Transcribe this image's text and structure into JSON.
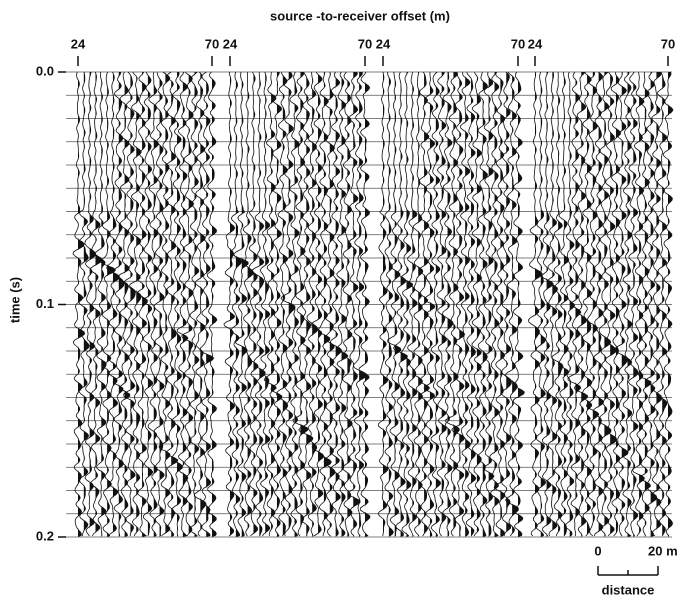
{
  "chart_data": {
    "type": "seismic",
    "title": "source -to-receiver offset (m)",
    "ylabel": "time (s)",
    "ylim": [
      0,
      0.2
    ],
    "yticks": [
      {
        "value": 0,
        "label": "0.0"
      },
      0.1,
      0.2
    ],
    "panels": [
      {
        "xlim": [
          24,
          70
        ],
        "xticks": [
          24,
          70
        ]
      },
      {
        "xlim": [
          24,
          70
        ],
        "xticks": [
          24,
          70
        ]
      },
      {
        "xlim": [
          24,
          70
        ],
        "xticks": [
          24,
          70
        ]
      },
      {
        "xlim": [
          24,
          70
        ],
        "xticks": [
          24,
          70
        ]
      }
    ],
    "scale_bar": {
      "ticks": [
        0,
        {
          "value": 20,
          "label": "20 m"
        }
      ],
      "label": "distance"
    }
  }
}
